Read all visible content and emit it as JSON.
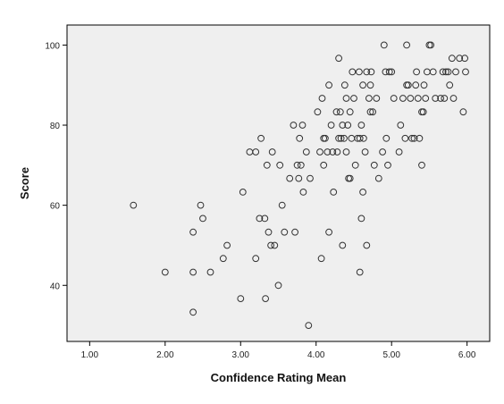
{
  "chart_data": {
    "type": "scatter",
    "title": "",
    "xlabel": "Confidence Rating Mean",
    "ylabel": "Score",
    "xlim": [
      0.7,
      6.3
    ],
    "ylim": [
      26,
      105
    ],
    "xticks": [
      1.0,
      2.0,
      3.0,
      4.0,
      5.0,
      6.0
    ],
    "xtick_labels": [
      "1.00",
      "2.00",
      "3.00",
      "4.00",
      "5.00",
      "6.00"
    ],
    "yticks": [
      40,
      60,
      80,
      100
    ],
    "ytick_labels": [
      "40",
      "60",
      "80",
      "100"
    ],
    "grid": false,
    "legend": "none",
    "colors": {
      "plot_background": "#efefef",
      "marker_stroke": "#333333",
      "frame": "#000000"
    },
    "points": [
      [
        1.58,
        60
      ],
      [
        2.0,
        43.3
      ],
      [
        2.37,
        53.3
      ],
      [
        2.37,
        43.3
      ],
      [
        2.37,
        33.3
      ],
      [
        2.47,
        60
      ],
      [
        2.5,
        56.7
      ],
      [
        2.6,
        43.3
      ],
      [
        2.77,
        46.7
      ],
      [
        2.82,
        50
      ],
      [
        3.0,
        36.7
      ],
      [
        3.03,
        63.3
      ],
      [
        3.12,
        73.3
      ],
      [
        3.2,
        73.3
      ],
      [
        3.2,
        46.7
      ],
      [
        3.25,
        56.7
      ],
      [
        3.27,
        76.7
      ],
      [
        3.32,
        56.7
      ],
      [
        3.33,
        36.7
      ],
      [
        3.35,
        70
      ],
      [
        3.37,
        53.3
      ],
      [
        3.4,
        50
      ],
      [
        3.42,
        73.3
      ],
      [
        3.45,
        50
      ],
      [
        3.5,
        40
      ],
      [
        3.52,
        70
      ],
      [
        3.55,
        60
      ],
      [
        3.58,
        53.3
      ],
      [
        3.65,
        66.7
      ],
      [
        3.7,
        80
      ],
      [
        3.72,
        53.3
      ],
      [
        3.75,
        70
      ],
      [
        3.77,
        66.7
      ],
      [
        3.78,
        76.7
      ],
      [
        3.8,
        70
      ],
      [
        3.82,
        80
      ],
      [
        3.83,
        63.3
      ],
      [
        3.87,
        73.3
      ],
      [
        3.9,
        30
      ],
      [
        3.92,
        66.7
      ],
      [
        4.02,
        83.3
      ],
      [
        4.05,
        73.3
      ],
      [
        4.07,
        46.7
      ],
      [
        4.08,
        86.7
      ],
      [
        4.1,
        70
      ],
      [
        4.1,
        76.7
      ],
      [
        4.12,
        76.7
      ],
      [
        4.15,
        73.3
      ],
      [
        4.17,
        90
      ],
      [
        4.17,
        53.3
      ],
      [
        4.2,
        80
      ],
      [
        4.22,
        73.3
      ],
      [
        4.23,
        63.3
      ],
      [
        4.27,
        83.3
      ],
      [
        4.28,
        73.3
      ],
      [
        4.3,
        96.7
      ],
      [
        4.3,
        76.7
      ],
      [
        4.32,
        83.3
      ],
      [
        4.33,
        76.7
      ],
      [
        4.35,
        50
      ],
      [
        4.35,
        80
      ],
      [
        4.37,
        76.7
      ],
      [
        4.38,
        90
      ],
      [
        4.4,
        86.7
      ],
      [
        4.4,
        73.3
      ],
      [
        4.42,
        80
      ],
      [
        4.43,
        66.7
      ],
      [
        4.45,
        83.3
      ],
      [
        4.45,
        66.7
      ],
      [
        4.47,
        76.7
      ],
      [
        4.48,
        93.3
      ],
      [
        4.5,
        86.7
      ],
      [
        4.52,
        70
      ],
      [
        4.55,
        76.7
      ],
      [
        4.57,
        93.3
      ],
      [
        4.58,
        76.7
      ],
      [
        4.58,
        43.3
      ],
      [
        4.6,
        56.7
      ],
      [
        4.6,
        80
      ],
      [
        4.62,
        63.3
      ],
      [
        4.62,
        90
      ],
      [
        4.63,
        76.7
      ],
      [
        4.65,
        73.3
      ],
      [
        4.67,
        93.3
      ],
      [
        4.67,
        50
      ],
      [
        4.7,
        86.7
      ],
      [
        4.72,
        83.3
      ],
      [
        4.72,
        90
      ],
      [
        4.73,
        93.3
      ],
      [
        4.75,
        83.3
      ],
      [
        4.77,
        70
      ],
      [
        4.8,
        86.7
      ],
      [
        4.83,
        66.7
      ],
      [
        4.88,
        73.3
      ],
      [
        4.9,
        100
      ],
      [
        4.92,
        93.3
      ],
      [
        4.93,
        76.7
      ],
      [
        4.95,
        70
      ],
      [
        4.97,
        93.3
      ],
      [
        5.0,
        93.3
      ],
      [
        5.03,
        86.7
      ],
      [
        5.1,
        73.3
      ],
      [
        5.12,
        80
      ],
      [
        5.15,
        86.7
      ],
      [
        5.18,
        76.7
      ],
      [
        5.2,
        90
      ],
      [
        5.2,
        100
      ],
      [
        5.22,
        90
      ],
      [
        5.25,
        86.7
      ],
      [
        5.27,
        76.7
      ],
      [
        5.3,
        76.7
      ],
      [
        5.32,
        90
      ],
      [
        5.33,
        93.3
      ],
      [
        5.35,
        86.7
      ],
      [
        5.37,
        76.7
      ],
      [
        5.4,
        70
      ],
      [
        5.4,
        83.3
      ],
      [
        5.42,
        83.3
      ],
      [
        5.43,
        90
      ],
      [
        5.45,
        86.7
      ],
      [
        5.47,
        93.3
      ],
      [
        5.5,
        100
      ],
      [
        5.52,
        100
      ],
      [
        5.55,
        93.3
      ],
      [
        5.58,
        86.7
      ],
      [
        5.65,
        86.7
      ],
      [
        5.68,
        93.3
      ],
      [
        5.7,
        86.7
      ],
      [
        5.72,
        93.3
      ],
      [
        5.75,
        93.3
      ],
      [
        5.77,
        90
      ],
      [
        5.8,
        96.7
      ],
      [
        5.82,
        86.7
      ],
      [
        5.85,
        93.3
      ],
      [
        5.9,
        96.7
      ],
      [
        5.95,
        83.3
      ],
      [
        5.97,
        96.7
      ],
      [
        5.98,
        93.3
      ]
    ]
  }
}
